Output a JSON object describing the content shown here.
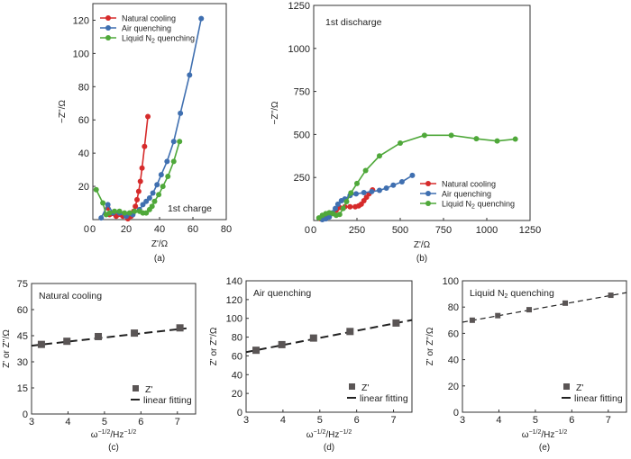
{
  "chart_data": [
    {
      "id": "a",
      "type": "line",
      "panel_label": "(a)",
      "annotation": "1st charge",
      "xlabel": "Z'/Ω",
      "ylabel": "−Z''/Ω",
      "xlim": [
        0,
        80
      ],
      "ylim": [
        0,
        130
      ],
      "xticks": [
        0,
        20,
        40,
        60,
        80
      ],
      "yticks": [
        20,
        40,
        60,
        80,
        100,
        120
      ],
      "legend_position": "top-left",
      "series": [
        {
          "name": "Natural cooling",
          "color": "#d62b2b",
          "x": [
            9,
            10,
            14,
            18,
            21,
            23,
            24.5,
            25.5,
            26.5,
            27.5,
            28.5,
            29.5,
            31,
            33
          ],
          "y": [
            7,
            3,
            2,
            2,
            0.5,
            2,
            5,
            8,
            12,
            17,
            23,
            31,
            44,
            62
          ]
        },
        {
          "name": "Air quenching",
          "color": "#3f6fb0",
          "x": [
            5,
            9,
            12,
            16,
            20,
            24,
            28,
            30,
            32,
            34,
            36,
            38.5,
            41,
            44.5,
            48.5,
            52.5,
            58,
            65
          ],
          "y": [
            1,
            9,
            4,
            4,
            2,
            3,
            6,
            9,
            11,
            13,
            16,
            21,
            27,
            35,
            47,
            64,
            87,
            121
          ]
        },
        {
          "name": "Liquid N2 quenching",
          "color": "#4fa83a",
          "x": [
            2,
            6,
            8,
            10,
            13,
            16,
            19,
            22,
            25,
            28,
            30,
            32,
            34,
            35.5,
            37,
            39.5,
            42,
            45,
            48.5,
            52
          ],
          "y": [
            18,
            10,
            3,
            4,
            5,
            5,
            4,
            4,
            5,
            5,
            4,
            4,
            6,
            8,
            11,
            15,
            20,
            26,
            35,
            47
          ]
        }
      ]
    },
    {
      "id": "b",
      "type": "line",
      "panel_label": "(b)",
      "annotation": "1st discharge",
      "xlabel": "Z'/Ω",
      "ylabel": "−Z''/Ω",
      "xlim": [
        0,
        1250
      ],
      "ylim": [
        0,
        1250
      ],
      "xticks": [
        0,
        250,
        500,
        750,
        1000,
        1250
      ],
      "yticks": [
        250,
        500,
        750,
        1000,
        1250
      ],
      "legend_position": "center-right",
      "series": [
        {
          "name": "Natural cooling",
          "color": "#d62b2b",
          "x": [
            40,
            60,
            80,
            100,
            130,
            150,
            180,
            210,
            240,
            260,
            275,
            290,
            305,
            320,
            340
          ],
          "y": [
            10,
            20,
            30,
            40,
            60,
            75,
            80,
            80,
            80,
            85,
            95,
            115,
            135,
            155,
            178
          ]
        },
        {
          "name": "Air quenching",
          "color": "#3f6fb0",
          "x": [
            50,
            70,
            90,
            110,
            125,
            140,
            160,
            180,
            210,
            245,
            290,
            335,
            380,
            420,
            460,
            510,
            570
          ],
          "y": [
            5,
            10,
            20,
            45,
            70,
            95,
            115,
            125,
            145,
            155,
            162,
            168,
            175,
            188,
            205,
            225,
            262
          ]
        },
        {
          "name": "Liquid N2 quenching",
          "color": "#4fa83a",
          "x": [
            30,
            50,
            70,
            90,
            110,
            130,
            150,
            170,
            190,
            215,
            250,
            300,
            380,
            500,
            640,
            795,
            940,
            1060,
            1165
          ],
          "y": [
            15,
            30,
            40,
            45,
            40,
            30,
            35,
            70,
            110,
            160,
            215,
            290,
            375,
            450,
            495,
            495,
            475,
            462,
            473
          ]
        }
      ]
    },
    {
      "id": "c",
      "type": "scatter",
      "panel_label": "(c)",
      "title": "Natural cooling",
      "xlabel": "ω−1/2/Hz−1/2",
      "ylabel": "Z' or Z''/Ω",
      "xlim": [
        3,
        7.5
      ],
      "ylim": [
        0,
        75
      ],
      "xticks": [
        3,
        4,
        5,
        6,
        7
      ],
      "yticks": [
        0,
        15,
        30,
        45,
        60,
        75
      ],
      "legend_position": "bottom-right",
      "points_name": "Z'",
      "fit_name": "linear fitting",
      "x": [
        3.27,
        3.97,
        4.83,
        5.82,
        7.07
      ],
      "y": [
        40.0,
        41.8,
        44.5,
        46.5,
        49.5
      ],
      "fit": {
        "slope": 2.35,
        "intercept": 32.2,
        "x_range": [
          3,
          7.25
        ]
      }
    },
    {
      "id": "d",
      "type": "scatter",
      "panel_label": "(d)",
      "title": "Air quenching",
      "xlabel": "ω−1/2/Hz−1/2",
      "ylabel": "Z' or Z''/Ω",
      "xlim": [
        3,
        7.5
      ],
      "ylim": [
        0,
        140
      ],
      "xticks": [
        3,
        4,
        5,
        6,
        7
      ],
      "yticks": [
        0,
        20,
        40,
        60,
        80,
        100,
        120,
        140
      ],
      "legend_position": "bottom-right",
      "points_name": "Z'",
      "fit_name": "linear fitting",
      "x": [
        3.27,
        3.97,
        4.83,
        5.82,
        7.07
      ],
      "y": [
        66,
        72,
        79,
        86,
        95
      ],
      "fit": {
        "slope": 7.6,
        "intercept": 41.2,
        "x_range": [
          3,
          7.5
        ]
      }
    },
    {
      "id": "e",
      "type": "scatter",
      "panel_label": "(e)",
      "title": "Liquid N2 quenching",
      "xlabel": "ω−1/2/Hz−1/2",
      "ylabel": "Z' or Z''/Ω",
      "xlim": [
        3,
        7.5
      ],
      "ylim": [
        0,
        100
      ],
      "xticks": [
        3,
        4,
        5,
        6,
        7
      ],
      "yticks": [
        0,
        20,
        40,
        60,
        80,
        100
      ],
      "legend_position": "bottom-right",
      "points_name": "Z'",
      "fit_name": "linear fitting",
      "x": [
        3.27,
        3.97,
        4.83,
        5.82,
        7.07
      ],
      "y": [
        70,
        73.5,
        78,
        83,
        89
      ],
      "fit": {
        "slope": 5.0,
        "intercept": 53.5,
        "x_range": [
          3,
          7.5
        ]
      }
    }
  ]
}
